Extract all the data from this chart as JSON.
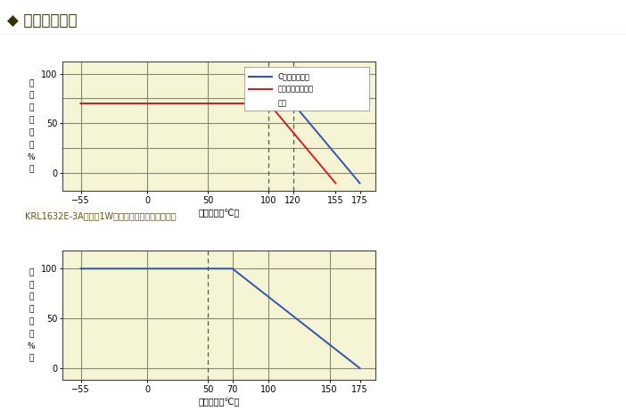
{
  "title": "◆ 负荷减轻曲线",
  "title_bg": "#f0f0c8",
  "plot_bg": "#f5f5d5",
  "fig_bg": "#ffffff",
  "chart1": {
    "blue_line": {
      "x": [
        -55,
        120,
        175
      ],
      "y": [
        70,
        70,
        -10
      ],
      "color": "#3355aa",
      "label": "C（高耗热材料"
    },
    "red_line": {
      "x": [
        -55,
        100,
        155
      ],
      "y": [
        70,
        70,
        -10
      ],
      "color": "#cc2222",
      "label": "）（低热电动势产"
    },
    "legend_line3": "品）",
    "xlabel": "终端温度（℃）",
    "ylabel_chars": [
      "額",
      "定",
      "功",
      "率",
      "比",
      "（",
      "%",
      "）"
    ],
    "xticks": [
      -55,
      0,
      50,
      100,
      120,
      155,
      175
    ],
    "yticks": [
      0,
      50,
      100
    ],
    "xlim": [
      -70,
      188
    ],
    "ylim": [
      -18,
      112
    ],
    "vlines_solid": [
      -55,
      0,
      50
    ],
    "vlines_dashed": [
      100,
      120
    ],
    "hgrid_vals": [
      0,
      25,
      50,
      75,
      100
    ]
  },
  "middle_text": "KRL1632E-3A系列（1W品）也以下列性能准备着。",
  "chart2": {
    "blue_line": {
      "x": [
        -55,
        70,
        175
      ],
      "y": [
        100,
        100,
        0
      ],
      "color": "#3355aa"
    },
    "xlabel": "终端温度（℃）",
    "ylabel_chars": [
      "額",
      "定",
      "功",
      "率",
      "比",
      "（",
      "%",
      "）"
    ],
    "xticks": [
      -55,
      0,
      50,
      70,
      100,
      150,
      175
    ],
    "yticks": [
      0,
      50,
      100
    ],
    "xlim": [
      -70,
      188
    ],
    "ylim": [
      -12,
      118
    ],
    "vlines_solid": [
      -55,
      0,
      70,
      100,
      150
    ],
    "vlines_dashed": [
      50
    ],
    "hgrid_vals": [
      0,
      50,
      100
    ]
  }
}
